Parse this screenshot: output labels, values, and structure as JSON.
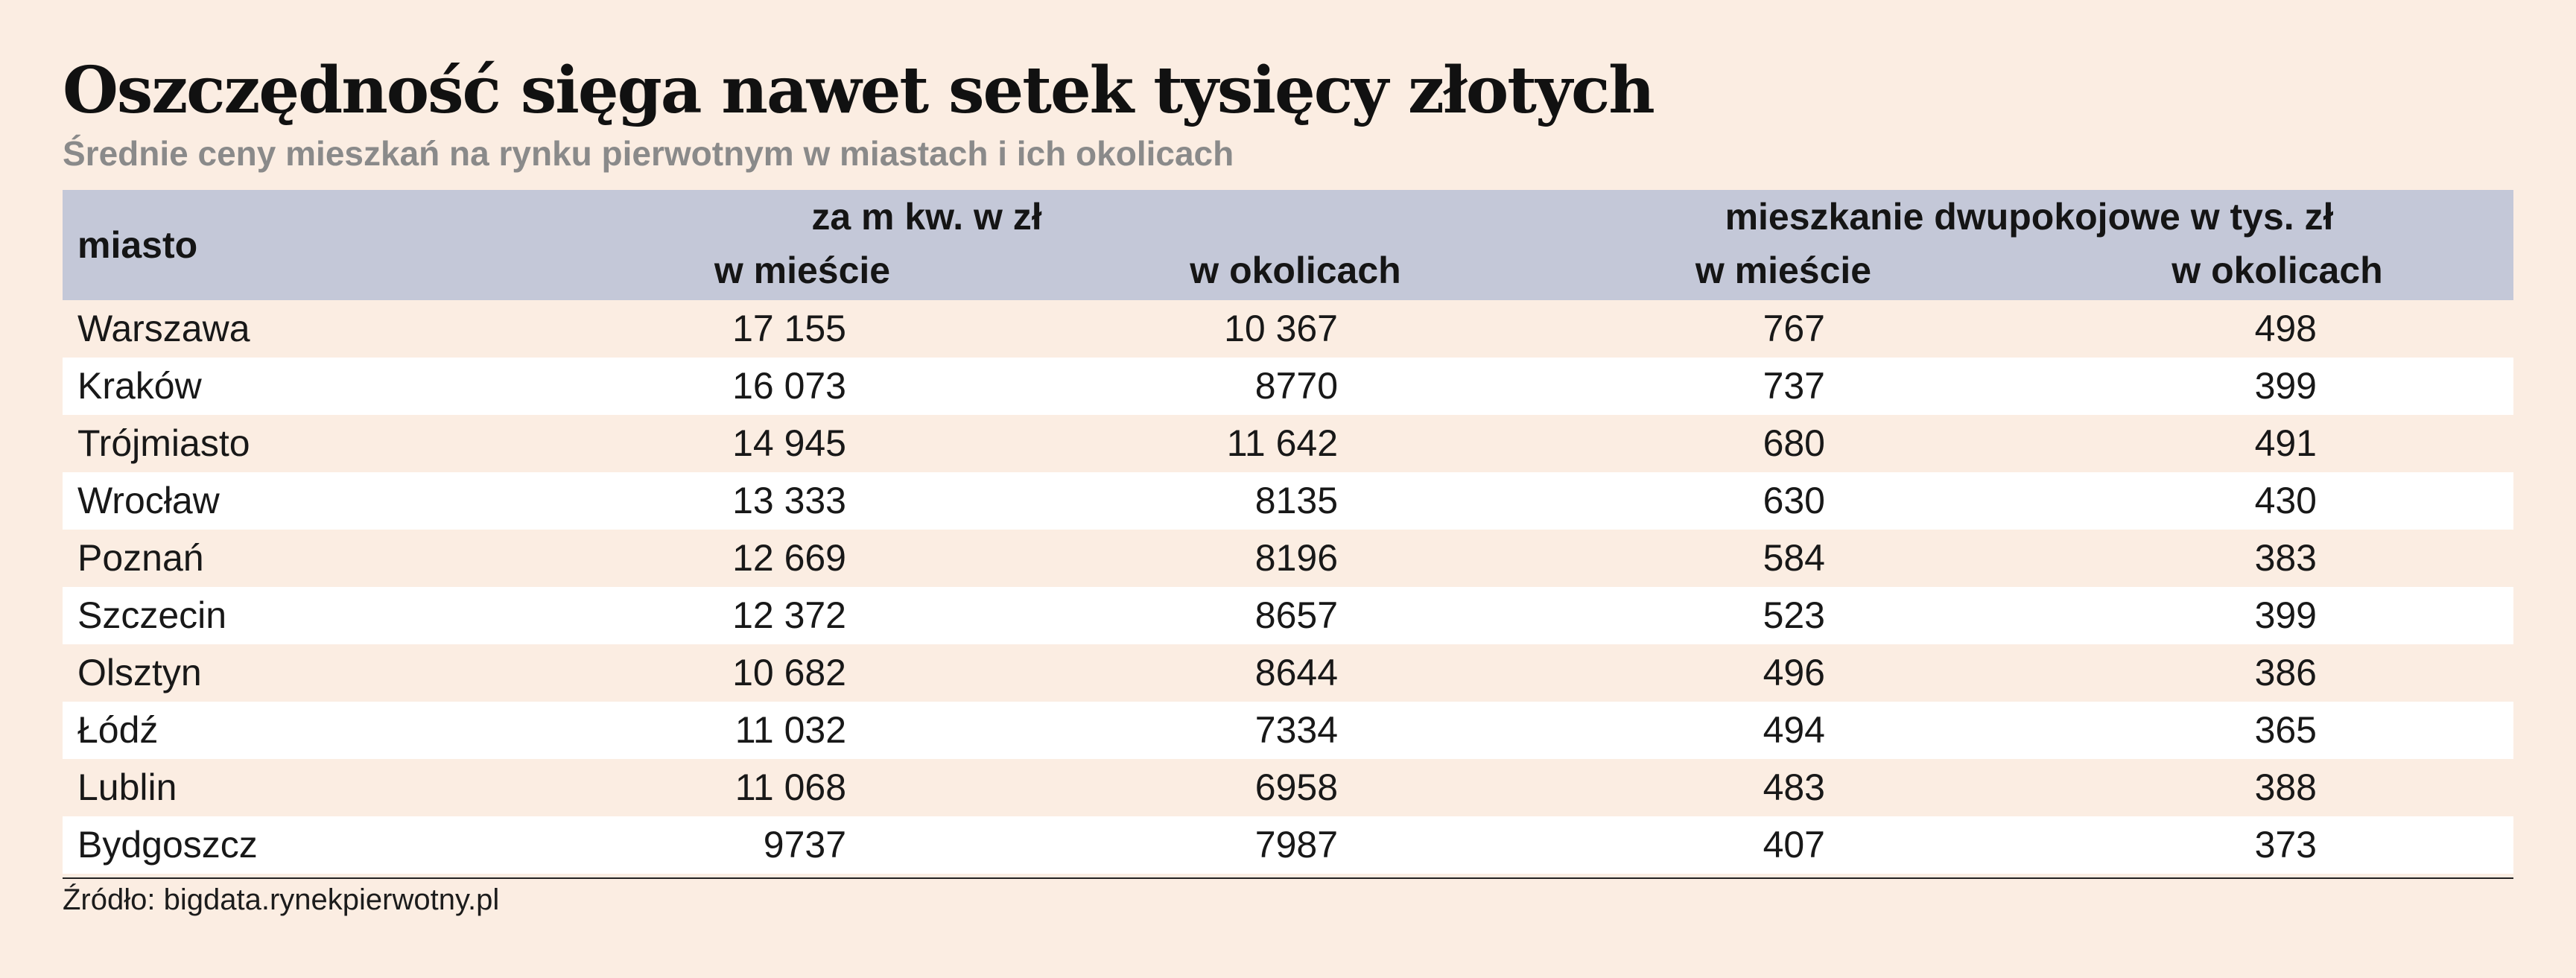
{
  "chart_data": {
    "type": "table",
    "title": "Oszczędność sięga nawet setek tysięcy złotych",
    "subtitle": "Średnie ceny mieszkań na rynku pierwotnym w miastach i ich okolicach",
    "header": {
      "city": "miasto",
      "group_1": "za m kw. w zł",
      "group_2": "mieszkanie dwupokojowe w tys. zł",
      "sub": [
        "w mieście",
        "w okolicach",
        "w mieście",
        "w okolicach"
      ]
    },
    "rows": [
      {
        "city": "Warszawa",
        "values": [
          "17 155",
          "10 367",
          "767",
          "498"
        ]
      },
      {
        "city": "Kraków",
        "values": [
          "16 073",
          "8770",
          "737",
          "399"
        ]
      },
      {
        "city": "Trójmiasto",
        "values": [
          "14 945",
          "11 642",
          "680",
          "491"
        ]
      },
      {
        "city": "Wrocław",
        "values": [
          "13 333",
          "8135",
          "630",
          "430"
        ]
      },
      {
        "city": "Poznań",
        "values": [
          "12 669",
          "8196",
          "584",
          "383"
        ]
      },
      {
        "city": "Szczecin",
        "values": [
          "12 372",
          "8657",
          "523",
          "399"
        ]
      },
      {
        "city": "Olsztyn",
        "values": [
          "10 682",
          "8644",
          "496",
          "386"
        ]
      },
      {
        "city": "Łódź",
        "values": [
          "11 032",
          "7334",
          "494",
          "365"
        ]
      },
      {
        "city": "Lublin",
        "values": [
          "11 068",
          "6958",
          "483",
          "388"
        ]
      },
      {
        "city": "Bydgoszcz",
        "values": [
          "9737",
          "7987",
          "407",
          "373"
        ]
      }
    ],
    "source": "Źródło: bigdata.rynekpierwotny.pl"
  },
  "colors": {
    "background": "#fbede2",
    "header_background": "#c4c8d8",
    "row_alternate": "#ffffff",
    "subtitle": "#8a8a8a"
  }
}
